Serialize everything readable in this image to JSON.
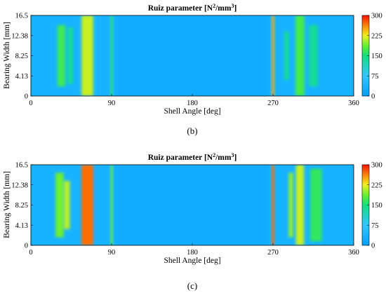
{
  "figure": {
    "captions": [
      "(b)",
      "(c)"
    ]
  },
  "chart_data": [
    {
      "type": "heatmap",
      "panel": "(b)",
      "title": "Ruiz parameter [N",
      "title_sup1": "2",
      "title_mid": "/mm",
      "title_sup2": "3",
      "title_end": "]",
      "xlabel": "Shell Angle [deg]",
      "ylabel": "Bearing Width [mm]",
      "xlim": [
        0,
        360
      ],
      "ylim": [
        0,
        16.5
      ],
      "xticks": [
        "0",
        "90",
        "180",
        "270",
        "360"
      ],
      "yticks": [
        "0",
        "4.13",
        "8.25",
        "12.38",
        "16.5"
      ],
      "colorbar": {
        "range": [
          0,
          300
        ],
        "ticks": [
          "0",
          "75",
          "150",
          "225",
          "300"
        ],
        "colormap": "jet"
      },
      "bands": [
        {
          "angle": 34,
          "width": 9,
          "value": 170,
          "ymin": 0.12,
          "ymax": 0.88
        },
        {
          "angle": 44,
          "width": 6,
          "value": 140,
          "ymin": 0.15,
          "ymax": 0.85
        },
        {
          "angle": 63,
          "width": 13,
          "value": 215,
          "ymin": 0.0,
          "ymax": 1.0
        },
        {
          "angle": 90,
          "width": 2.5,
          "value": 165,
          "ymin": 0.0,
          "ymax": 1.0
        },
        {
          "angle": 270,
          "width": 3,
          "value": 250,
          "ymin": 0.0,
          "ymax": 1.0
        },
        {
          "angle": 285,
          "width": 5,
          "value": 140,
          "ymin": 0.2,
          "ymax": 0.8
        },
        {
          "angle": 300,
          "width": 10,
          "value": 175,
          "ymin": 0.0,
          "ymax": 1.0
        },
        {
          "angle": 315,
          "width": 10,
          "value": 135,
          "ymin": 0.12,
          "ymax": 0.88
        }
      ]
    },
    {
      "type": "heatmap",
      "panel": "(c)",
      "title": "Ruiz parameter [N",
      "title_sup1": "2",
      "title_mid": "/mm",
      "title_sup2": "3",
      "title_end": "]",
      "xlabel": "Shell Angle [deg]",
      "ylabel": "Bearing Width [mm]",
      "xlim": [
        0,
        360
      ],
      "ylim": [
        0,
        16.5
      ],
      "xticks": [
        "0",
        "90",
        "180",
        "270",
        "360"
      ],
      "yticks": [
        "0",
        "4.13",
        "8.25",
        "12.38",
        "16.5"
      ],
      "colorbar": {
        "range": [
          0,
          300
        ],
        "ticks": [
          "0",
          "75",
          "150",
          "225",
          "300"
        ],
        "colormap": "jet"
      },
      "bands": [
        {
          "angle": 32,
          "width": 9,
          "value": 190,
          "ymin": 0.1,
          "ymax": 0.9
        },
        {
          "angle": 40,
          "width": 7,
          "value": 210,
          "ymin": 0.2,
          "ymax": 0.8
        },
        {
          "angle": 63,
          "width": 13,
          "value": 270,
          "ymin": 0.0,
          "ymax": 1.0
        },
        {
          "angle": 90,
          "width": 2.5,
          "value": 190,
          "ymin": 0.0,
          "ymax": 1.0
        },
        {
          "angle": 270,
          "width": 3,
          "value": 270,
          "ymin": 0.0,
          "ymax": 1.0
        },
        {
          "angle": 290,
          "width": 5,
          "value": 200,
          "ymin": 0.1,
          "ymax": 0.9
        },
        {
          "angle": 300,
          "width": 9,
          "value": 215,
          "ymin": 0.0,
          "ymax": 1.0
        },
        {
          "angle": 318,
          "width": 13,
          "value": 165,
          "ymin": 0.05,
          "ymax": 0.95
        }
      ]
    }
  ]
}
